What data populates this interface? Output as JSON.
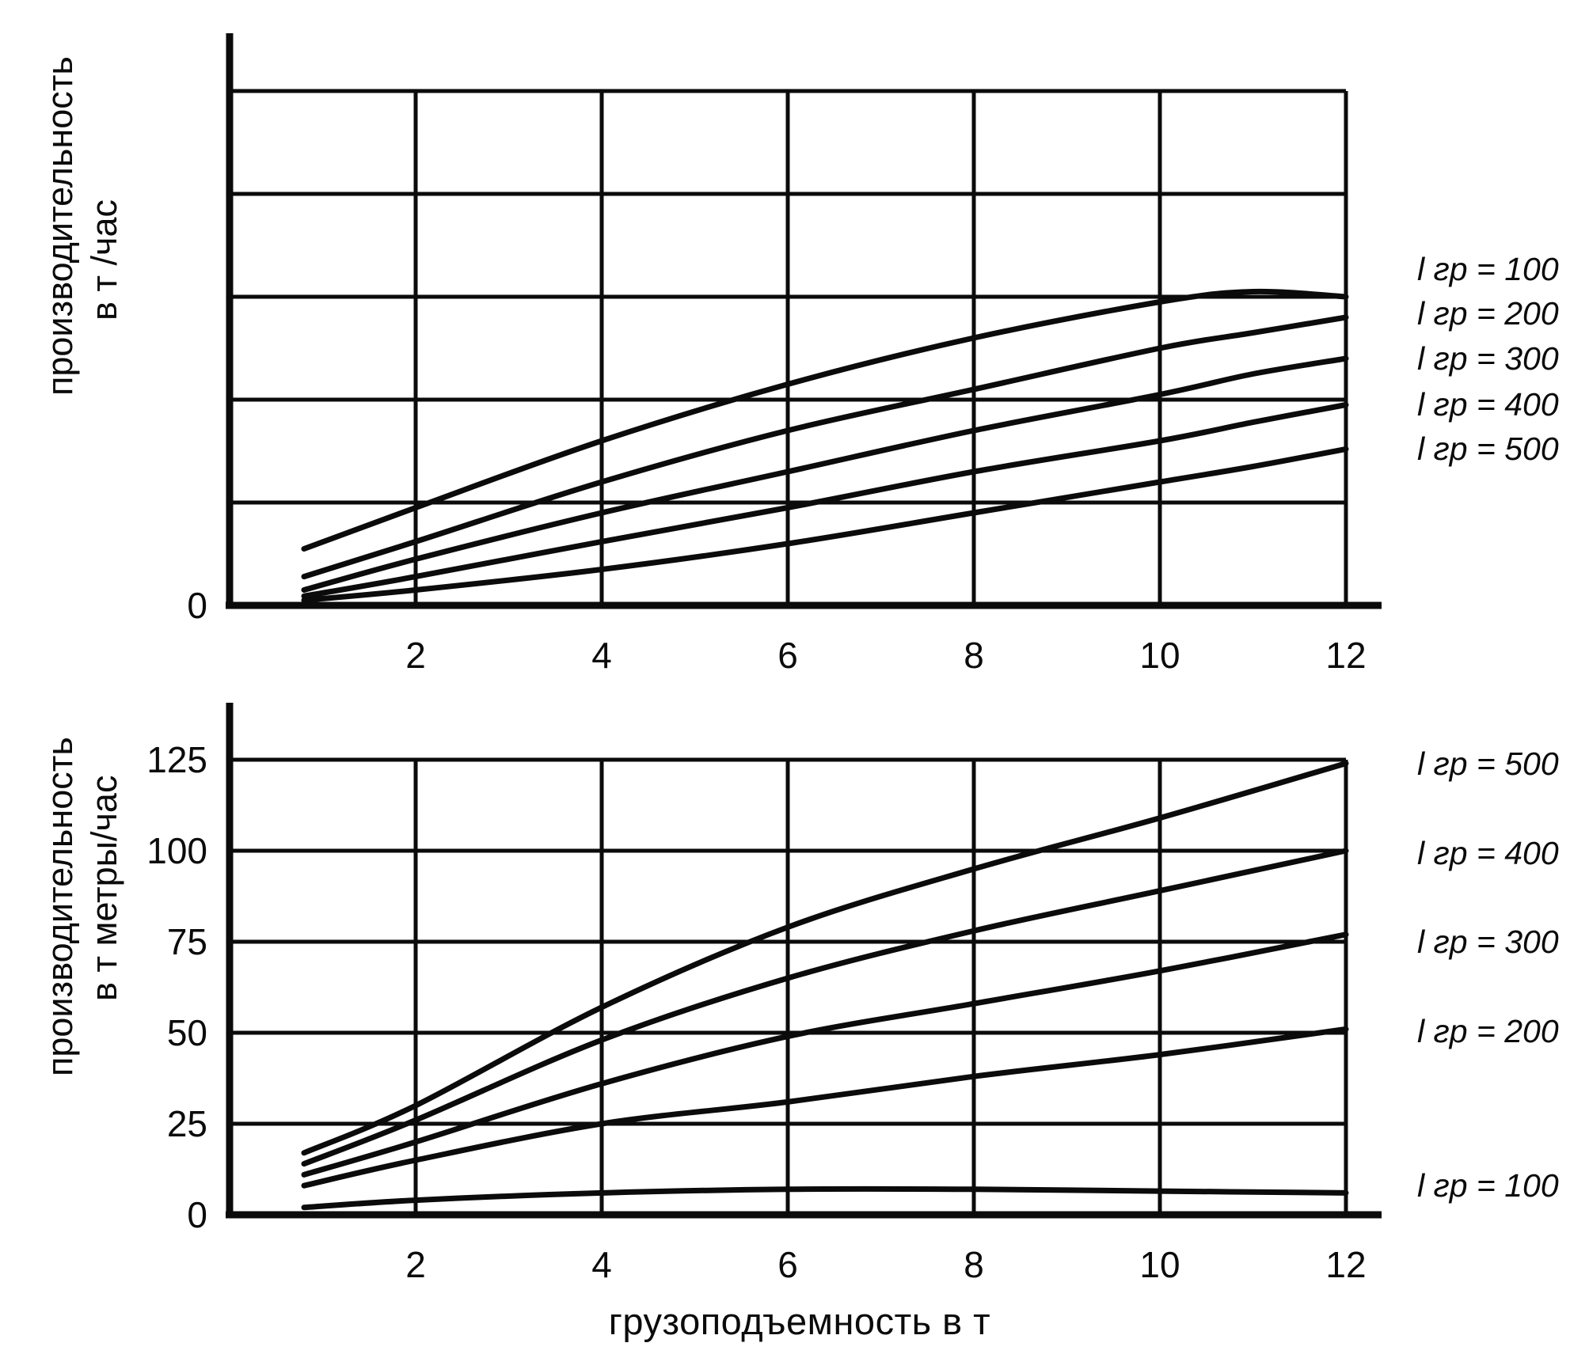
{
  "figure": {
    "background": "#ffffff",
    "line_color": "#0b0b0b",
    "x_axis_title": "грузоподъемность в т"
  },
  "chart_data": [
    {
      "type": "line",
      "title": "",
      "ylabel_lines": [
        "производительность",
        "в т /час"
      ],
      "xlabel": "грузоподъемность в т",
      "x": [
        0.8,
        2,
        4,
        6,
        8,
        10,
        11,
        12
      ],
      "series": [
        {
          "name": "l гр = 100",
          "values": [
            0.55,
            0.95,
            1.6,
            2.15,
            2.6,
            2.95,
            3.05,
            3.0
          ]
        },
        {
          "name": "l гр = 200",
          "values": [
            0.28,
            0.62,
            1.2,
            1.7,
            2.1,
            2.5,
            2.65,
            2.8
          ]
        },
        {
          "name": "l гр = 300",
          "values": [
            0.15,
            0.45,
            0.9,
            1.3,
            1.7,
            2.05,
            2.25,
            2.4
          ]
        },
        {
          "name": "l гр = 400",
          "values": [
            0.09,
            0.28,
            0.62,
            0.95,
            1.3,
            1.6,
            1.78,
            1.95
          ]
        },
        {
          "name": "l гр = 500",
          "values": [
            0.05,
            0.15,
            0.35,
            0.6,
            0.9,
            1.2,
            1.35,
            1.52
          ]
        }
      ],
      "xlim": [
        0,
        12.4
      ],
      "ylim": [
        0,
        5
      ],
      "y_gridline_step": 1,
      "x_tick_values": [
        2,
        4,
        6,
        8,
        10,
        12
      ],
      "x_tick_labels": [
        "2",
        "4",
        "6",
        "8",
        "10",
        "12"
      ],
      "y_tick_values": [
        0
      ],
      "y_tick_labels": [
        "0"
      ],
      "grid": true,
      "legend_position": "right",
      "note": "y axis has no numeric labels except 0; values estimated in grid-cell units"
    },
    {
      "type": "line",
      "title": "",
      "ylabel_lines": [
        "производительность",
        "в т метры/час"
      ],
      "xlabel": "грузоподъемность в т",
      "x": [
        0.8,
        2,
        4,
        6,
        8,
        10,
        12
      ],
      "series": [
        {
          "name": "l гр = 500",
          "values": [
            17,
            30,
            57,
            79,
            95,
            109,
            124
          ]
        },
        {
          "name": "l гр = 400",
          "values": [
            14,
            26,
            48,
            65,
            78,
            89,
            100
          ]
        },
        {
          "name": "l гр = 300",
          "values": [
            11,
            20,
            36,
            49,
            58,
            67,
            77
          ]
        },
        {
          "name": "l гр = 200",
          "values": [
            8,
            15,
            25,
            31,
            38,
            44,
            51
          ]
        },
        {
          "name": "l гр = 100",
          "values": [
            2,
            4,
            6,
            7,
            7,
            6.5,
            6
          ]
        }
      ],
      "xlim": [
        0,
        12.4
      ],
      "ylim": [
        0,
        125
      ],
      "y_gridline_step": 25,
      "x_tick_values": [
        2,
        4,
        6,
        8,
        10,
        12
      ],
      "x_tick_labels": [
        "2",
        "4",
        "6",
        "8",
        "10",
        "12"
      ],
      "y_tick_values": [
        0,
        25,
        50,
        75,
        100,
        125
      ],
      "y_tick_labels": [
        "0",
        "25",
        "50",
        "75",
        "100",
        "125"
      ],
      "grid": true,
      "legend_position": "right"
    }
  ]
}
